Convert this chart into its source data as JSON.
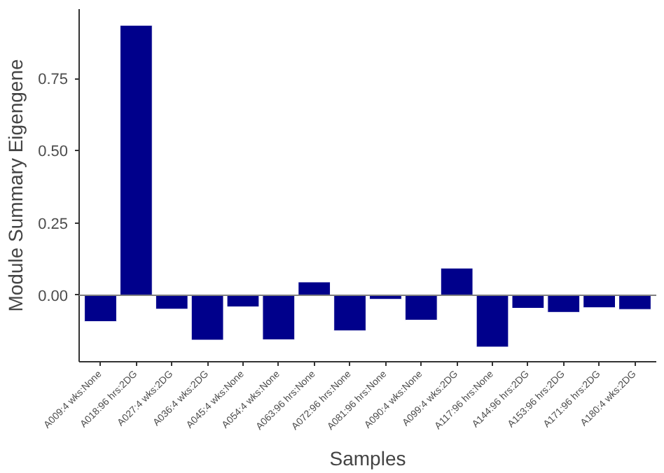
{
  "chart_data": {
    "type": "bar",
    "xlabel": "Samples",
    "ylabel": "Module Summary Eigengene",
    "categories": [
      "A009:4 wks:None",
      "A018:96 hrs:2DG",
      "A027:4 wks:2DG",
      "A036:4 wks:2DG",
      "A045:4 wks:None",
      "A054:4 wks:None",
      "A063:96 hrs:None",
      "A072:96 hrs:None",
      "A081:96 hrs:None",
      "A090:4 wks:None",
      "A099:4 wks:2DG",
      "A117:96 hrs:None",
      "A144:96 hrs:2DG",
      "A153:96 hrs:2DG",
      "A171:96 hrs:2DG",
      "A180:4 wks:2DG"
    ],
    "values": [
      -0.091,
      0.934,
      -0.048,
      -0.155,
      -0.04,
      -0.154,
      0.046,
      -0.123,
      -0.014,
      -0.086,
      0.094,
      -0.179,
      -0.045,
      -0.059,
      -0.043,
      -0.049
    ],
    "color": "#00008b",
    "ylim": [
      -0.23,
      0.99
    ],
    "yticks": [
      {
        "value": 0,
        "label": "0.00"
      },
      {
        "value": 0.25,
        "label": "0.25"
      },
      {
        "value": 0.5,
        "label": "0.50"
      },
      {
        "value": 0.75,
        "label": "0.75"
      }
    ],
    "ref_lines": [
      {
        "axis": "y",
        "value": 0,
        "color": "#808080"
      }
    ],
    "grid": false
  }
}
